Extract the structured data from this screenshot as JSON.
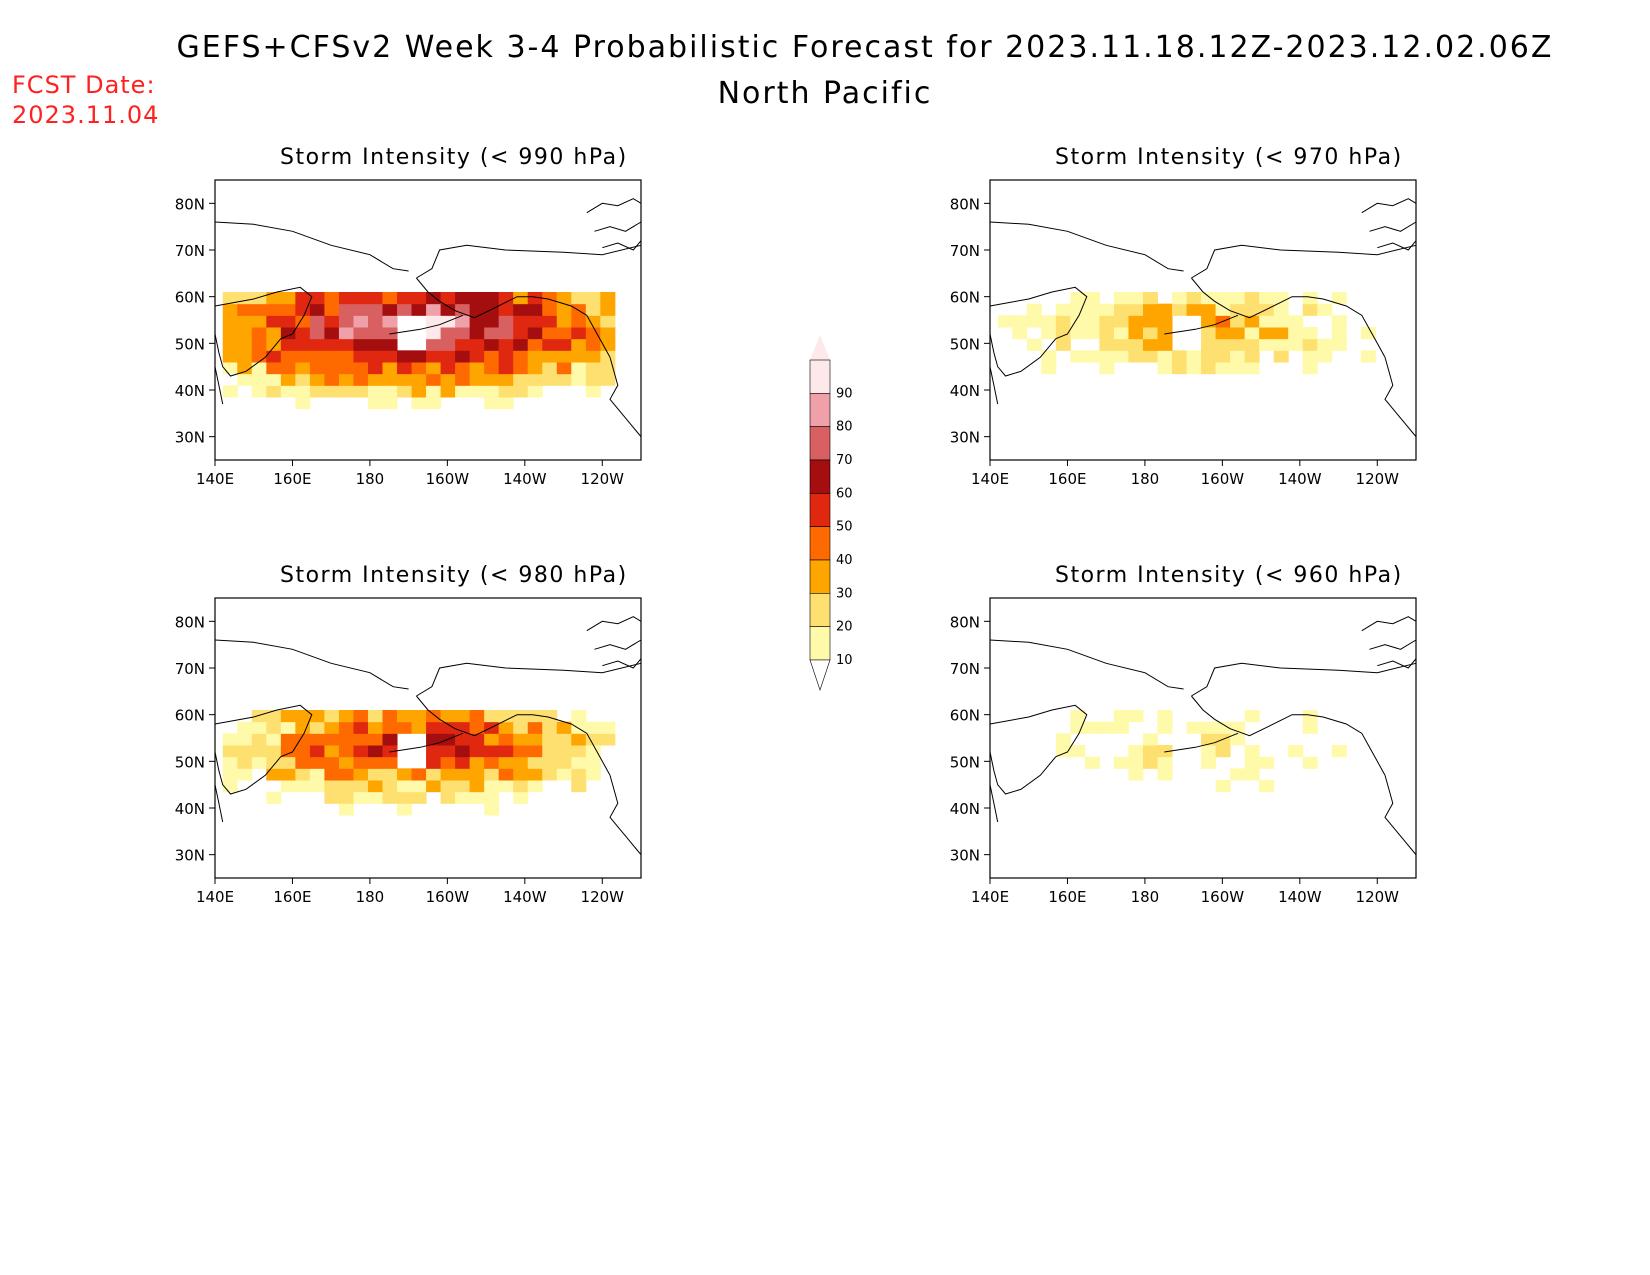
{
  "header": {
    "title": "GEFS+CFSv2 Week 3-4 Probabilistic Forecast for 2023.11.18.12Z-2023.12.02.06Z",
    "subtitle": "North Pacific",
    "fcst_label": "FCST Date:",
    "fcst_date": "2023.11.04"
  },
  "axes": {
    "lat_labels": [
      "80N",
      "70N",
      "60N",
      "50N",
      "40N",
      "30N"
    ],
    "lon_labels": [
      "140E",
      "160E",
      "180",
      "160W",
      "140W",
      "120W"
    ]
  },
  "panels": [
    {
      "title": "Storm Intensity (< 990 hPa)",
      "level": "990 hPa"
    },
    {
      "title": "Storm Intensity (< 970 hPa)",
      "level": "970 hPa"
    },
    {
      "title": "Storm Intensity (< 980 hPa)",
      "level": "980 hPa"
    },
    {
      "title": "Storm Intensity (< 960 hPa)",
      "level": "960 hPa"
    }
  ],
  "colorbar": {
    "labels": [
      "90",
      "80",
      "70",
      "60",
      "50",
      "40",
      "30",
      "20",
      "10"
    ],
    "colors": [
      "#fde8ea",
      "#f0a0a8",
      "#d96060",
      "#a50e0e",
      "#e02810",
      "#ff6a00",
      "#ffa500",
      "#fee070",
      "#fffaaa"
    ]
  },
  "chart_data": {
    "type": "heatmap",
    "units": "%",
    "lat_range": [
      25,
      85
    ],
    "lon_range": [
      140,
      250
    ],
    "levels": [
      10,
      20,
      30,
      40,
      50,
      60,
      70,
      80,
      90
    ]
  }
}
